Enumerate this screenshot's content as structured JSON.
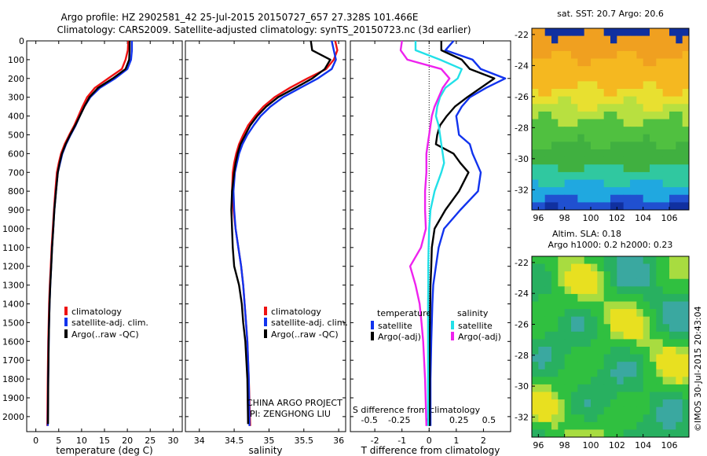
{
  "header": {
    "line1": "Argo profile: HZ 2902581_42 25-Jul-2015 20150727_657 27.328S 101.466E",
    "line2": "Climatology: CARS2009. Satellite-adjusted climatology: synTS_20150723.nc (3d earlier)"
  },
  "colors": {
    "climatology": "#ee1111",
    "satellite": "#1133ee",
    "argo": "#000000",
    "sal_satellite": "#22e0e8",
    "sal_argo": "#ee22ee"
  },
  "chart_data": [
    {
      "type": "line",
      "xlabel": "temperature (deg C)",
      "xlim": [
        -2,
        32
      ],
      "ylim": [
        2080,
        0
      ],
      "xticks": [
        "0",
        "5",
        "10",
        "15",
        "20",
        "25",
        "30"
      ],
      "yticks": [
        "0",
        "100",
        "200",
        "300",
        "400",
        "500",
        "600",
        "700",
        "800",
        "900",
        "1000",
        "1100",
        "1200",
        "1300",
        "1400",
        "1500",
        "1600",
        "1700",
        "1800",
        "1900",
        "2000"
      ],
      "legend": [
        "climatology",
        "satellite-adj. clim.",
        "Argo(..raw -QC)"
      ],
      "series": [
        {
          "name": "climatology",
          "x": [
            20.2,
            20.1,
            19.6,
            18.8,
            15.8,
            12.9,
            11.2,
            10.2,
            9.3,
            8.4,
            7.3,
            6.3,
            5.5,
            5.0,
            4.6,
            4.25,
            3.95,
            3.7,
            3.45,
            3.25,
            3.05,
            2.9,
            2.8,
            2.7,
            2.6,
            2.5
          ],
          "y": [
            0,
            50,
            100,
            150,
            200,
            250,
            300,
            350,
            400,
            450,
            500,
            550,
            600,
            650,
            700,
            800,
            900,
            1000,
            1100,
            1200,
            1300,
            1400,
            1500,
            1600,
            1800,
            2050
          ]
        },
        {
          "name": "satellite-adj. clim.",
          "x": [
            21.0,
            21.0,
            20.8,
            20.0,
            17.3,
            14.0,
            11.9,
            10.6,
            9.6,
            8.7,
            7.6,
            6.6,
            5.8,
            5.3,
            4.8,
            4.4,
            4.05,
            3.8,
            3.55,
            3.35,
            3.15,
            3.0,
            2.9,
            2.8,
            2.7,
            2.6
          ],
          "y": [
            0,
            50,
            100,
            150,
            200,
            250,
            300,
            350,
            400,
            450,
            500,
            550,
            600,
            650,
            700,
            800,
            900,
            1000,
            1100,
            1200,
            1300,
            1400,
            1500,
            1600,
            1800,
            2050
          ]
        },
        {
          "name": "Argo(..raw -QC)",
          "x": [
            20.5,
            20.5,
            20.4,
            19.6,
            16.8,
            13.6,
            11.7,
            10.6,
            9.6,
            8.6,
            7.5,
            6.5,
            5.7,
            5.2,
            4.8,
            4.4,
            4.05,
            3.8,
            3.55,
            3.35,
            3.15,
            3.0,
            2.9,
            2.8,
            2.7,
            2.65
          ],
          "y": [
            0,
            50,
            100,
            150,
            200,
            250,
            300,
            350,
            400,
            450,
            500,
            550,
            600,
            650,
            700,
            800,
            900,
            1000,
            1100,
            1200,
            1300,
            1400,
            1500,
            1600,
            1800,
            2040
          ]
        }
      ]
    },
    {
      "type": "line",
      "xlabel": "salinity",
      "xlim": [
        33.8,
        36.1
      ],
      "ylim": [
        2080,
        0
      ],
      "xticks": [
        "34",
        "34.5",
        "35",
        "35.5",
        "36"
      ],
      "legend": [
        "climatology",
        "satellite-adj. clim.",
        "Argo(..raw -QC)"
      ],
      "annotation": [
        "CHINA ARGO PROJECT",
        "PI: ZENGHONG LIU"
      ],
      "series": [
        {
          "name": "climatology",
          "x": [
            35.95,
            35.98,
            35.93,
            35.82,
            35.55,
            35.3,
            35.08,
            34.92,
            34.8,
            34.7,
            34.63,
            34.57,
            34.53,
            34.5,
            34.48,
            34.47,
            34.49,
            34.52,
            34.56,
            34.6,
            34.63,
            34.65,
            34.67,
            34.69,
            34.71,
            34.73
          ],
          "y": [
            0,
            50,
            100,
            150,
            200,
            250,
            300,
            350,
            400,
            450,
            500,
            550,
            600,
            650,
            700,
            800,
            900,
            1000,
            1100,
            1200,
            1300,
            1400,
            1500,
            1600,
            1800,
            2050
          ]
        },
        {
          "name": "satellite-adj. clim.",
          "x": [
            35.9,
            35.93,
            35.96,
            35.9,
            35.7,
            35.45,
            35.2,
            35.02,
            34.88,
            34.78,
            34.69,
            34.62,
            34.57,
            34.54,
            34.51,
            34.49,
            34.5,
            34.52,
            34.56,
            34.6,
            34.63,
            34.65,
            34.67,
            34.69,
            34.71,
            34.72
          ],
          "y": [
            0,
            50,
            100,
            150,
            200,
            250,
            300,
            350,
            400,
            450,
            500,
            550,
            600,
            650,
            700,
            800,
            900,
            1000,
            1100,
            1200,
            1300,
            1400,
            1500,
            1600,
            1800,
            2050
          ]
        },
        {
          "name": "Argo(..raw -QC)",
          "x": [
            35.6,
            35.62,
            35.88,
            35.8,
            35.62,
            35.38,
            35.13,
            34.96,
            34.83,
            34.73,
            34.66,
            34.59,
            34.55,
            34.52,
            34.5,
            34.47,
            34.46,
            34.47,
            34.48,
            34.5,
            34.57,
            34.61,
            34.63,
            34.66,
            34.69,
            34.7
          ],
          "y": [
            0,
            50,
            100,
            150,
            200,
            250,
            300,
            350,
            400,
            450,
            500,
            550,
            600,
            650,
            700,
            800,
            900,
            1000,
            1100,
            1200,
            1300,
            1400,
            1500,
            1600,
            1800,
            2040
          ]
        }
      ]
    },
    {
      "type": "line",
      "xlabel": "T difference from climatology",
      "xlabel_top": "S difference from climatology",
      "xlim": [
        -2.9,
        3.0
      ],
      "ylim": [
        2080,
        0
      ],
      "xticks": [
        "-2",
        "-1",
        "0",
        "1",
        "2"
      ],
      "xticks_top": [
        "-0.5",
        "-0.25",
        "0",
        "0.25",
        "0.5"
      ],
      "legend_headers": [
        "temperature",
        "salinity"
      ],
      "legend": [
        "satellite",
        "Argo(-adj)",
        "satellite",
        "Argo(-adj)"
      ],
      "series": [
        {
          "name": "satellite",
          "x": [
            0.9,
            0.6,
            1.6,
            1.9,
            2.8,
            2.1,
            1.5,
            1.2,
            1.0,
            1.05,
            1.1,
            1.5,
            1.6,
            1.75,
            1.9,
            1.8,
            1.15,
            0.55,
            0.35,
            0.25,
            0.15,
            0.12,
            0.1,
            0.08,
            0.05,
            0.05
          ],
          "y": [
            0,
            50,
            100,
            150,
            200,
            250,
            300,
            350,
            400,
            450,
            500,
            550,
            600,
            650,
            700,
            800,
            900,
            1000,
            1100,
            1200,
            1300,
            1400,
            1500,
            1600,
            1800,
            2050
          ]
        },
        {
          "name": "Argo(-adj)",
          "x": [
            0.45,
            0.45,
            1.2,
            1.5,
            2.4,
            1.9,
            1.4,
            0.95,
            0.65,
            0.4,
            0.3,
            0.25,
            0.9,
            1.15,
            1.45,
            1.1,
            0.6,
            0.2,
            0.1,
            0.08,
            0.05,
            0.04,
            0.03,
            0.02,
            0.02,
            0.02
          ],
          "y": [
            0,
            50,
            100,
            150,
            200,
            250,
            300,
            350,
            400,
            450,
            500,
            550,
            600,
            650,
            700,
            800,
            900,
            1000,
            1100,
            1200,
            1300,
            1400,
            1500,
            1600,
            1800,
            2050
          ]
        },
        {
          "name": "salinity satellite",
          "x": [
            -0.5,
            -0.5,
            0.4,
            1.2,
            1.05,
            0.6,
            0.4,
            0.3,
            0.25,
            0.35,
            0.4,
            0.45,
            0.5,
            0.55,
            0.45,
            0.2,
            0.05,
            0.0,
            -0.02,
            -0.03,
            -0.03,
            -0.04,
            -0.04,
            -0.04,
            -0.04,
            -0.04
          ],
          "y": [
            0,
            50,
            100,
            150,
            200,
            250,
            300,
            350,
            400,
            450,
            500,
            550,
            600,
            650,
            700,
            800,
            900,
            1000,
            1100,
            1200,
            1300,
            1400,
            1500,
            1600,
            1800,
            2050
          ]
        },
        {
          "name": "salinity Argo(-adj)",
          "x": [
            -1.0,
            -1.05,
            -0.8,
            0.45,
            0.75,
            0.5,
            0.35,
            0.2,
            0.1,
            0.05,
            0.0,
            -0.05,
            -0.1,
            -0.1,
            -0.1,
            -0.15,
            -0.15,
            -0.12,
            -0.3,
            -0.7,
            -0.5,
            -0.35,
            -0.28,
            -0.22,
            -0.15,
            -0.1
          ],
          "y": [
            0,
            50,
            100,
            150,
            200,
            250,
            300,
            350,
            400,
            450,
            500,
            550,
            600,
            650,
            700,
            800,
            900,
            1000,
            1100,
            1200,
            1300,
            1400,
            1500,
            1600,
            1800,
            2050
          ]
        }
      ]
    },
    {
      "type": "heatmap",
      "title": "sat. SST: 20.7  Argo: 20.6",
      "xticks": [
        "96",
        "98",
        "100",
        "102",
        "104",
        "106"
      ],
      "yticks": [
        "-22",
        "-24",
        "-26",
        "-28",
        "-30",
        "-32"
      ],
      "xlim": [
        95.5,
        107.5
      ],
      "ylim": [
        -33.3,
        -21.6
      ],
      "marker": {
        "lon": 101.466,
        "lat": -27.328
      }
    },
    {
      "type": "heatmap",
      "title_line1": "Altim. SLA: 0.18",
      "title_line2": "Argo h1000: 0.2  h2000: 0.23",
      "xticks": [
        "96",
        "98",
        "100",
        "102",
        "104",
        "106"
      ],
      "yticks": [
        "-22",
        "-24",
        "-26",
        "-28",
        "-30",
        "-32"
      ],
      "xlim": [
        95.5,
        107.5
      ],
      "ylim": [
        -33.3,
        -21.6
      ],
      "side_label": "©IMOS 30-Jul-2015 20:43:04"
    }
  ]
}
